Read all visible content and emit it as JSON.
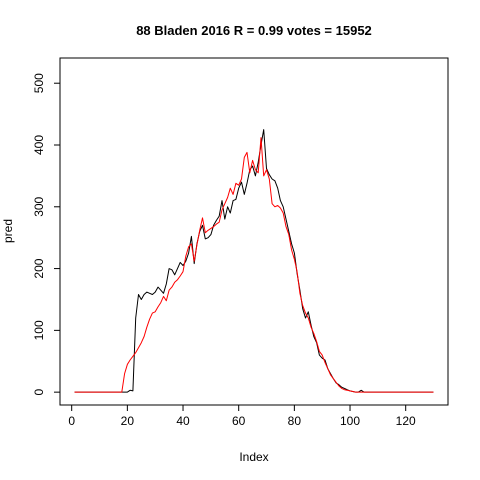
{
  "chart_data": {
    "type": "line",
    "title": "88 Bladen 2016 R = 0.99 votes = 15952",
    "xlabel": "Index",
    "ylabel": "pred",
    "xlim": [
      1,
      130
    ],
    "ylim": [
      0,
      520
    ],
    "x_ticks": [
      0,
      20,
      40,
      60,
      80,
      100,
      120
    ],
    "y_ticks": [
      0,
      100,
      200,
      300,
      400,
      500
    ],
    "grid": false,
    "legend": "none",
    "series": [
      {
        "color": "#000000",
        "points": [
          [
            1,
            0
          ],
          [
            10,
            0
          ],
          [
            20,
            0
          ],
          [
            21,
            3
          ],
          [
            22,
            2
          ],
          [
            23,
            120
          ],
          [
            24,
            158
          ],
          [
            25,
            150
          ],
          [
            26,
            158
          ],
          [
            27,
            162
          ],
          [
            28,
            160
          ],
          [
            29,
            158
          ],
          [
            30,
            162
          ],
          [
            31,
            170
          ],
          [
            32,
            165
          ],
          [
            33,
            160
          ],
          [
            34,
            175
          ],
          [
            35,
            200
          ],
          [
            36,
            198
          ],
          [
            37,
            190
          ],
          [
            38,
            200
          ],
          [
            39,
            210
          ],
          [
            40,
            205
          ],
          [
            41,
            212
          ],
          [
            42,
            225
          ],
          [
            43,
            252
          ],
          [
            44,
            208
          ],
          [
            45,
            240
          ],
          [
            46,
            260
          ],
          [
            47,
            270
          ],
          [
            48,
            248
          ],
          [
            49,
            250
          ],
          [
            50,
            255
          ],
          [
            51,
            270
          ],
          [
            52,
            278
          ],
          [
            53,
            285
          ],
          [
            54,
            310
          ],
          [
            55,
            280
          ],
          [
            56,
            300
          ],
          [
            57,
            290
          ],
          [
            58,
            310
          ],
          [
            59,
            312
          ],
          [
            60,
            330
          ],
          [
            61,
            340
          ],
          [
            62,
            320
          ],
          [
            63,
            338
          ],
          [
            64,
            360
          ],
          [
            65,
            366
          ],
          [
            66,
            350
          ],
          [
            67,
            372
          ],
          [
            68,
            400
          ],
          [
            69,
            425
          ],
          [
            70,
            362
          ],
          [
            71,
            352
          ],
          [
            72,
            345
          ],
          [
            73,
            342
          ],
          [
            74,
            330
          ],
          [
            75,
            310
          ],
          [
            76,
            300
          ],
          [
            77,
            280
          ],
          [
            78,
            260
          ],
          [
            79,
            240
          ],
          [
            80,
            225
          ],
          [
            81,
            192
          ],
          [
            82,
            165
          ],
          [
            83,
            135
          ],
          [
            84,
            120
          ],
          [
            85,
            130
          ],
          [
            86,
            108
          ],
          [
            87,
            90
          ],
          [
            88,
            80
          ],
          [
            89,
            60
          ],
          [
            90,
            55
          ],
          [
            91,
            52
          ],
          [
            92,
            38
          ],
          [
            93,
            30
          ],
          [
            94,
            22
          ],
          [
            95,
            15
          ],
          [
            96,
            12
          ],
          [
            97,
            8
          ],
          [
            98,
            6
          ],
          [
            99,
            4
          ],
          [
            100,
            2
          ],
          [
            101,
            1
          ],
          [
            102,
            0
          ],
          [
            103,
            0
          ],
          [
            104,
            3
          ],
          [
            105,
            0
          ],
          [
            130,
            0
          ]
        ]
      },
      {
        "color": "#ff0000",
        "points": [
          [
            1,
            0
          ],
          [
            10,
            0
          ],
          [
            18,
            0
          ],
          [
            19,
            30
          ],
          [
            20,
            45
          ],
          [
            21,
            52
          ],
          [
            22,
            58
          ],
          [
            23,
            64
          ],
          [
            24,
            72
          ],
          [
            25,
            80
          ],
          [
            26,
            90
          ],
          [
            27,
            105
          ],
          [
            28,
            118
          ],
          [
            29,
            128
          ],
          [
            30,
            130
          ],
          [
            31,
            138
          ],
          [
            32,
            145
          ],
          [
            33,
            155
          ],
          [
            34,
            148
          ],
          [
            35,
            165
          ],
          [
            36,
            170
          ],
          [
            37,
            178
          ],
          [
            38,
            182
          ],
          [
            39,
            188
          ],
          [
            40,
            195
          ],
          [
            41,
            220
          ],
          [
            42,
            235
          ],
          [
            43,
            240
          ],
          [
            44,
            212
          ],
          [
            45,
            238
          ],
          [
            46,
            262
          ],
          [
            47,
            282
          ],
          [
            48,
            258
          ],
          [
            49,
            262
          ],
          [
            50,
            265
          ],
          [
            51,
            268
          ],
          [
            52,
            272
          ],
          [
            53,
            275
          ],
          [
            54,
            295
          ],
          [
            55,
            305
          ],
          [
            56,
            315
          ],
          [
            57,
            330
          ],
          [
            58,
            320
          ],
          [
            59,
            338
          ],
          [
            60,
            335
          ],
          [
            61,
            345
          ],
          [
            62,
            380
          ],
          [
            63,
            388
          ],
          [
            64,
            355
          ],
          [
            65,
            375
          ],
          [
            66,
            360
          ],
          [
            67,
            355
          ],
          [
            68,
            412
          ],
          [
            69,
            350
          ],
          [
            70,
            360
          ],
          [
            71,
            345
          ],
          [
            72,
            305
          ],
          [
            73,
            300
          ],
          [
            74,
            302
          ],
          [
            75,
            298
          ],
          [
            76,
            290
          ],
          [
            77,
            268
          ],
          [
            78,
            255
          ],
          [
            79,
            230
          ],
          [
            80,
            215
          ],
          [
            81,
            195
          ],
          [
            82,
            160
          ],
          [
            83,
            140
          ],
          [
            84,
            128
          ],
          [
            85,
            120
          ],
          [
            86,
            105
          ],
          [
            87,
            95
          ],
          [
            88,
            82
          ],
          [
            89,
            66
          ],
          [
            90,
            60
          ],
          [
            91,
            48
          ],
          [
            92,
            38
          ],
          [
            93,
            28
          ],
          [
            94,
            22
          ],
          [
            95,
            16
          ],
          [
            96,
            10
          ],
          [
            97,
            6
          ],
          [
            98,
            4
          ],
          [
            99,
            3
          ],
          [
            100,
            2
          ],
          [
            101,
            1
          ],
          [
            102,
            0
          ],
          [
            130,
            0
          ]
        ]
      }
    ]
  }
}
